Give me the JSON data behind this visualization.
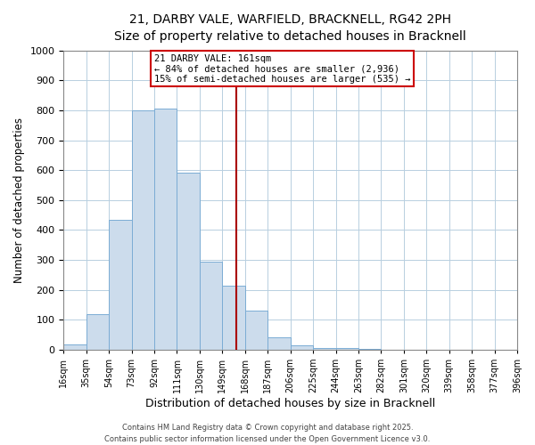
{
  "title_line1": "21, DARBY VALE, WARFIELD, BRACKNELL, RG42 2PH",
  "title_line2": "Size of property relative to detached houses in Bracknell",
  "bar_edges": [
    16,
    35,
    54,
    73,
    92,
    111,
    130,
    149,
    168,
    187,
    206,
    225,
    244,
    263,
    282,
    301,
    320,
    339,
    358,
    377,
    396
  ],
  "bar_heights": [
    18,
    120,
    435,
    800,
    805,
    590,
    295,
    215,
    130,
    42,
    14,
    5,
    5,
    2,
    1,
    1,
    1,
    1,
    1,
    1
  ],
  "bar_color": "#ccdcec",
  "bar_edgecolor": "#7bacd4",
  "vline_x": 161,
  "vline_color": "#aa0000",
  "ylabel": "Number of detached properties",
  "xlabel": "Distribution of detached houses by size in Bracknell",
  "ylim": [
    0,
    1000
  ],
  "yticks": [
    0,
    100,
    200,
    300,
    400,
    500,
    600,
    700,
    800,
    900,
    1000
  ],
  "xtick_labels": [
    "16sqm",
    "35sqm",
    "54sqm",
    "73sqm",
    "92sqm",
    "111sqm",
    "130sqm",
    "149sqm",
    "168sqm",
    "187sqm",
    "206sqm",
    "225sqm",
    "244sqm",
    "263sqm",
    "282sqm",
    "301sqm",
    "320sqm",
    "339sqm",
    "358sqm",
    "377sqm",
    "396sqm"
  ],
  "annotation_title": "21 DARBY VALE: 161sqm",
  "annotation_line1": "← 84% of detached houses are smaller (2,936)",
  "annotation_line2": "15% of semi-detached houses are larger (535) →",
  "footnote1": "Contains HM Land Registry data © Crown copyright and database right 2025.",
  "footnote2": "Contains public sector information licensed under the Open Government Licence v3.0.",
  "background_color": "#ffffff",
  "grid_color": "#b8cfe0"
}
